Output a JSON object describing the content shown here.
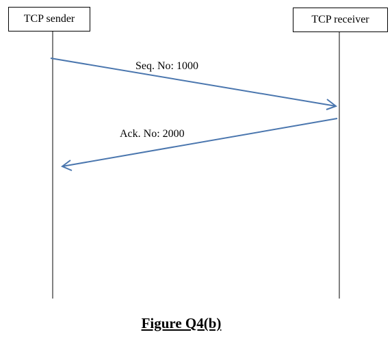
{
  "actors": {
    "sender": "TCP sender",
    "receiver": "TCP receiver"
  },
  "messages": [
    {
      "label": "Seq. No: 1000",
      "from": "sender",
      "to": "receiver"
    },
    {
      "label": "Ack. No: 2000",
      "from": "receiver",
      "to": "sender"
    }
  ],
  "caption": "Figure Q4(b)",
  "colors": {
    "arrow": "#4a76ae",
    "lifeline": "#000000"
  }
}
